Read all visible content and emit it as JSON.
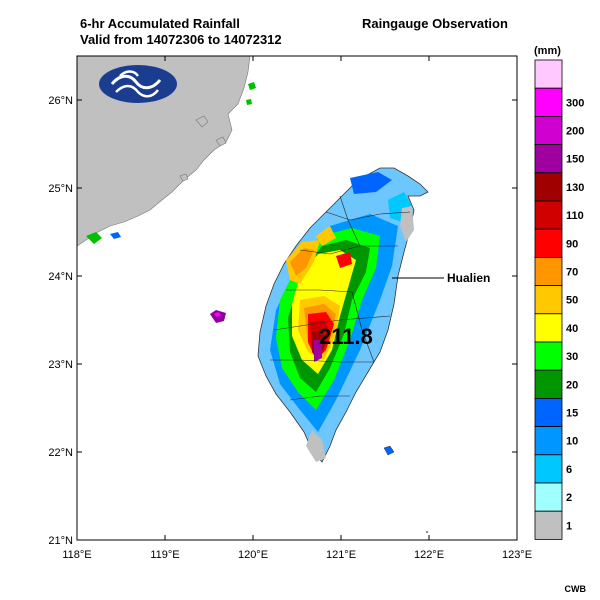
{
  "header": {
    "title_line1": "6-hr Accumulated Rainfall",
    "title_line2": "Valid from 14072306 to 14072312",
    "title_right": "Raingauge Observation"
  },
  "map": {
    "lat_ticks": [
      "21°N",
      "22°N",
      "23°N",
      "24°N",
      "25°N",
      "26°N"
    ],
    "lon_ticks": [
      "118°E",
      "119°E",
      "120°E",
      "121°E",
      "122°E",
      "123°E"
    ],
    "max_value": "211.8",
    "city_label": "Hualien",
    "logo": "cwb-logo",
    "land_color": "#c0c0c0",
    "sea_color": "#ffffff"
  },
  "legend": {
    "unit": "(mm)",
    "levels": [
      {
        "label": "",
        "color": "#ffc8ff"
      },
      {
        "label": "300",
        "color": "#ff00ff"
      },
      {
        "label": "200",
        "color": "#d000d0"
      },
      {
        "label": "150",
        "color": "#a000a0"
      },
      {
        "label": "130",
        "color": "#a00000"
      },
      {
        "label": "110",
        "color": "#d00000"
      },
      {
        "label": "90",
        "color": "#ff0000"
      },
      {
        "label": "70",
        "color": "#ff9600"
      },
      {
        "label": "50",
        "color": "#ffc800"
      },
      {
        "label": "40",
        "color": "#ffff00"
      },
      {
        "label": "30",
        "color": "#00ff00"
      },
      {
        "label": "20",
        "color": "#009600"
      },
      {
        "label": "15",
        "color": "#0064ff"
      },
      {
        "label": "10",
        "color": "#0096ff"
      },
      {
        "label": "6",
        "color": "#00c8ff"
      },
      {
        "label": "2",
        "color": "#a0ffff"
      },
      {
        "label": "1",
        "color": "#c0c0c0"
      }
    ]
  },
  "footer": {
    "credit": "CWB"
  }
}
